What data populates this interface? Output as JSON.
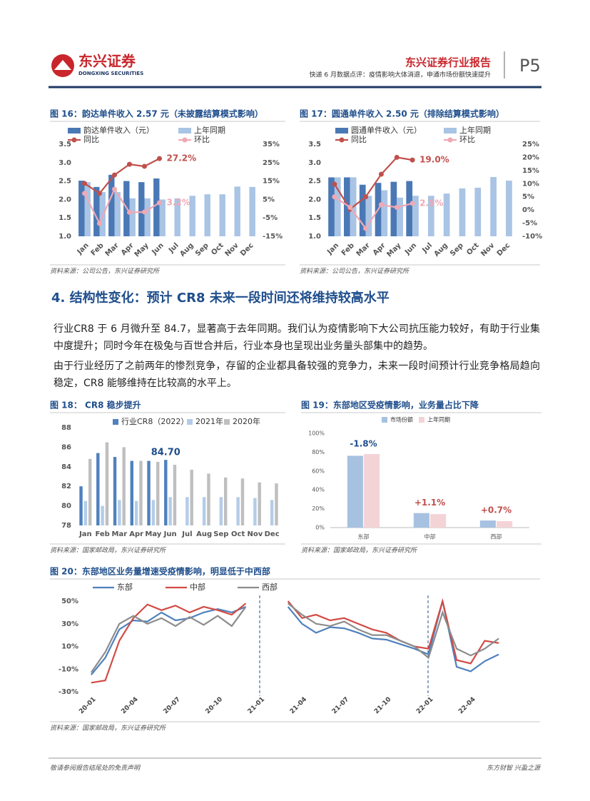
{
  "header": {
    "logo_cn": "东兴证券",
    "logo_en": "DONGXING SECURITIES",
    "report_type": "东兴证券行业报告",
    "report_title": "快递 6 月数据点评：疫情影响大体消退，申通市场份额快速提升",
    "page": "P5"
  },
  "chart_data": [
    {
      "type": "bar",
      "title": "图 16：韵达单件收入 2.57 元（未披露结算模式影响）",
      "source": "资料来源：公司公告，东兴证券研究所",
      "categories": [
        "Jan",
        "Feb",
        "Mar",
        "Apr",
        "May",
        "Jun",
        "Jul",
        "Aug",
        "Sep",
        "Oct",
        "Nov",
        "Dec"
      ],
      "ylim": [
        1,
        3.5
      ],
      "yticks": [
        {
          "value": 1,
          "label": "1.0"
        },
        1.5,
        {
          "value": 2,
          "label": "2.0"
        },
        2.5,
        {
          "value": 3,
          "label": "3.0"
        },
        3.5
      ],
      "y2lim": [
        -15,
        35
      ],
      "y2ticks": [
        {
          "value": -15,
          "label": "-15%"
        },
        {
          "value": -5,
          "label": "-5%"
        },
        {
          "value": 5,
          "label": "5%"
        },
        {
          "value": 15,
          "label": "15%"
        },
        {
          "value": 25,
          "label": "25%"
        },
        {
          "value": 35,
          "label": "35%"
        }
      ],
      "series": [
        {
          "name": "韵达单件收入（元）",
          "color": "#4a78b5",
          "values": [
            2.51,
            2.34,
            2.67,
            2.5,
            2.47,
            2.57,
            null,
            null,
            null,
            null,
            null,
            null
          ]
        },
        {
          "name": "上年同期",
          "color": "#a9c4e4",
          "values": [
            2.47,
            2.2,
            2.2,
            2.03,
            2.03,
            2.0,
            2.03,
            2.1,
            2.14,
            2.14,
            2.35,
            2.34
          ]
        },
        {
          "name": "同比",
          "type": "line",
          "axis": "y2",
          "markers": true,
          "color": "#c0504d",
          "values": [
            13.7,
            8.3,
            18.3,
            24.1,
            23,
            27.2,
            null,
            null,
            null,
            null,
            null,
            null
          ],
          "value_labels": [
            null,
            null,
            null,
            null,
            null,
            "27.2%",
            null,
            null,
            null,
            null,
            null,
            null
          ]
        },
        {
          "name": "环比",
          "type": "line",
          "axis": "y2",
          "markers": true,
          "color": "#f0a8b4",
          "values": [
            8.3,
            -8,
            10.6,
            -2,
            -1.8,
            3.2,
            null,
            null,
            null,
            null,
            null,
            null
          ],
          "value_labels": [
            null,
            null,
            null,
            null,
            null,
            "3.2%",
            null,
            null,
            null,
            null,
            null,
            null
          ]
        }
      ]
    },
    {
      "type": "bar",
      "title": "图 17：圆通单件收入 2.50 元（排除结算模式影响）",
      "source": "资料来源：公司公告，东兴证券研究所",
      "categories": [
        "Jan",
        "Feb",
        "Mar",
        "Apr",
        "May",
        "Jun",
        "Jul",
        "Aug",
        "Sep",
        "Oct",
        "Nov",
        "Dec"
      ],
      "ylim": [
        1,
        3.5
      ],
      "yticks": [
        {
          "value": 1,
          "label": "1.0"
        },
        1.5,
        {
          "value": 2,
          "label": "2.0"
        },
        2.5,
        {
          "value": 3,
          "label": "3.0"
        },
        3.5
      ],
      "y2lim": [
        -10,
        25
      ],
      "y2ticks": [
        {
          "value": -10,
          "label": "-10%"
        },
        {
          "value": -5,
          "label": "-5%"
        },
        {
          "value": 0,
          "label": "0%"
        },
        {
          "value": 5,
          "label": "5%"
        },
        {
          "value": 10,
          "label": "10%"
        },
        {
          "value": 15,
          "label": "15%"
        },
        {
          "value": 20,
          "label": "20%"
        },
        {
          "value": 25,
          "label": "25%"
        }
      ],
      "series": [
        {
          "name": "圆通单件收入（元）",
          "color": "#4a78b5",
          "values": [
            2.6,
            2.6,
            2.4,
            2.45,
            2.48,
            2.5,
            null,
            null,
            null,
            null,
            null,
            null
          ]
        },
        {
          "name": "上年同期",
          "color": "#a9c4e4",
          "values": [
            2.6,
            2.6,
            2.1,
            2.25,
            2.05,
            2.1,
            2.1,
            2.16,
            2.3,
            2.32,
            2.61,
            2.51
          ]
        },
        {
          "name": "同比",
          "type": "line",
          "axis": "y2",
          "markers": true,
          "color": "#c0504d",
          "values": [
            9.8,
            0.3,
            5,
            13.6,
            20,
            19.0,
            null,
            null,
            null,
            null,
            null,
            null
          ],
          "value_labels": [
            null,
            null,
            null,
            null,
            null,
            "19.0%",
            null,
            null,
            null,
            null,
            null,
            null
          ]
        },
        {
          "name": "环比",
          "type": "line",
          "axis": "y2",
          "markers": true,
          "color": "#f0a8b4",
          "values": [
            5,
            1,
            -7,
            2,
            1,
            2.5,
            null,
            null,
            null,
            null,
            null,
            null
          ],
          "value_labels": [
            null,
            null,
            null,
            null,
            null,
            "2.5%",
            null,
            null,
            null,
            null,
            null,
            null
          ]
        }
      ]
    },
    {
      "type": "bar",
      "title": "图 18：  CR8 稳步提升",
      "source": "资料来源：国家邮政局，东兴证券研究所",
      "categories": [
        "Jan",
        "Feb",
        "Mar",
        "Apr",
        "May",
        "Jun",
        "Jul",
        "Aug",
        "Sep",
        "Oct",
        "Nov",
        "Dec"
      ],
      "ylim": [
        78,
        88
      ],
      "yticks": [
        78,
        80,
        82,
        84,
        86,
        88
      ],
      "series": [
        {
          "name": "行业CR8（2022）",
          "color": "#4f81bd",
          "values": [
            82.0,
            85.4,
            85.0,
            84.6,
            84.6,
            84.7,
            null,
            null,
            null,
            null,
            null,
            null
          ],
          "value_labels": [
            null,
            null,
            null,
            null,
            null,
            "84.70",
            null,
            null,
            null,
            null,
            null,
            null
          ]
        },
        {
          "name": "2021年",
          "color": "#b4cce8",
          "values": [
            80.5,
            80.0,
            80.6,
            80.5,
            80.6,
            80.9,
            80.9,
            80.9,
            80.9,
            80.9,
            80.8,
            80.6
          ]
        },
        {
          "name": "2020年",
          "color": "#bfbfbf",
          "values": [
            84.8,
            86.5,
            86.0,
            84.6,
            84.5,
            84.2,
            83.7,
            83.3,
            82.9,
            82.8,
            82.4,
            82.3
          ]
        }
      ]
    },
    {
      "type": "bar",
      "title": "图 19：东部地区受疫情影响，业务量占比下降",
      "source": "资料来源：国家邮政局，东兴证券研究所",
      "categories": [
        "东部",
        "中部",
        "西部"
      ],
      "ylim": [
        0,
        100
      ],
      "yticks": [
        {
          "value": 0,
          "label": "0%"
        },
        {
          "value": 20,
          "label": "20%"
        },
        {
          "value": 40,
          "label": "40%"
        },
        {
          "value": 60,
          "label": "60%"
        },
        {
          "value": 80,
          "label": "80%"
        },
        {
          "value": 100,
          "label": "100%"
        }
      ],
      "series": [
        {
          "name": "市场份额",
          "color": "#a7c1e0",
          "values": [
            76.2,
            15.4,
            7.5
          ]
        },
        {
          "name": "上年同期",
          "color": "#f4d3d6",
          "values": [
            78.0,
            14.3,
            6.8
          ]
        }
      ],
      "annotations": [
        "-1.8%",
        "+1.1%",
        "+0.7%"
      ],
      "annotation_colors": [
        "#1f4e8c",
        "#c0504d",
        "#c0504d"
      ]
    },
    {
      "type": "line",
      "title": "图 20：东部地区业务量增速受疫情影响，明显低于中西部",
      "source": "资料来源：国家邮政局，东兴证券研究所",
      "categories": [
        "20-01",
        null,
        null,
        "20-04",
        null,
        null,
        "20-07",
        null,
        null,
        "20-10",
        null,
        null,
        "21-01",
        null,
        null,
        "21-04",
        null,
        null,
        "21-07",
        null,
        null,
        "21-10",
        null,
        null,
        "22-01",
        null,
        null,
        "22-04",
        null,
        null
      ],
      "ylim": [
        -30,
        50
      ],
      "yticks": [
        {
          "value": -30,
          "label": "-30%"
        },
        {
          "value": -10,
          "label": "-10%"
        },
        {
          "value": 10,
          "label": "10%"
        },
        {
          "value": 30,
          "label": "30%"
        },
        {
          "value": 50,
          "label": "50%"
        }
      ],
      "series": [
        {
          "name": "东部",
          "color": "#4f81bd",
          "values": [
            -15,
            0,
            25,
            33,
            32,
            40,
            33,
            35,
            40,
            43,
            40,
            45,
            null,
            null,
            45,
            30,
            22,
            27,
            26,
            22,
            17,
            16,
            12,
            8,
            3,
            50,
            -8,
            -12,
            -3,
            3
          ]
        },
        {
          "name": "中部",
          "color": "#d24b45",
          "values": [
            -22,
            -20,
            15,
            35,
            47,
            42,
            46,
            40,
            45,
            42,
            38,
            48,
            null,
            null,
            50,
            35,
            38,
            33,
            35,
            30,
            25,
            22,
            15,
            10,
            8,
            50,
            -2,
            -5,
            15,
            13
          ]
        },
        {
          "name": "西部",
          "color": "#8c8c8c",
          "values": [
            -13,
            5,
            30,
            37,
            30,
            35,
            28,
            36,
            29,
            37,
            28,
            45,
            null,
            null,
            48,
            38,
            30,
            28,
            32,
            25,
            20,
            20,
            15,
            10,
            0,
            40,
            8,
            2,
            8,
            17
          ]
        }
      ]
    }
  ],
  "section_title": "4. 结构性变化：预计 CR8 未来一段时间还将维持较高水平",
  "paragraphs": [
    "行业CR8 于 6 月微升至 84.7，显著高于去年同期。我们认为疫情影响下大公司抗压能力较好，有助于行业集中度提升；同时今年在极兔与百世合并后，行业本身也呈现出业务量头部集中的趋势。",
    "由于行业经历了之前两年的惨烈竞争，存留的企业都具备较强的竞争力，未来一段时间预计行业竞争格局趋向稳定，CR8 能够维持在比较高的水平上。"
  ],
  "footer": {
    "disclaimer": "敬请参阅报告结尾处的免责声明",
    "slogan": "东方财智 兴盈之源"
  }
}
